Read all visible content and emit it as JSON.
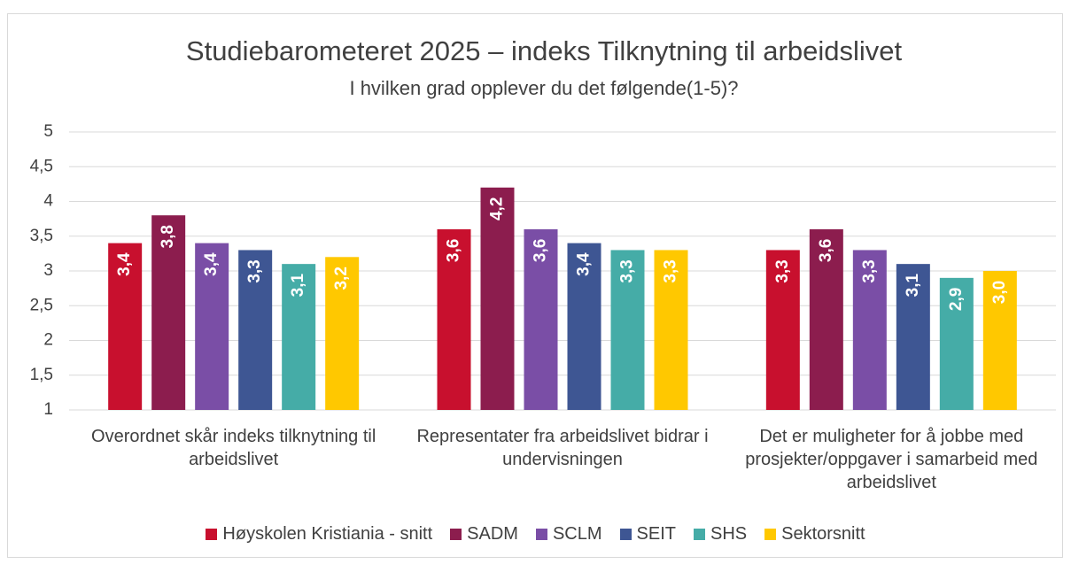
{
  "chart_data": {
    "type": "bar",
    "title": "Studiebarometeret 2025 – indeks Tilknytning til arbeidslivet",
    "subtitle": "I hvilken grad opplever du det følgende(1-5)?",
    "categories": [
      "Overordnet skår indeks tilknytning til arbeidslivet",
      "Representater fra arbeidslivet bidrar i undervisningen",
      "Det er muligheter for å jobbe med prosjekter/oppgaver i samarbeid med arbeidslivet"
    ],
    "series": [
      {
        "name": "Høyskolen Kristiania - snitt",
        "color": "#c8102e",
        "values": [
          3.4,
          3.6,
          3.3
        ],
        "value_labels": [
          "3,4",
          "3,6",
          "3,3"
        ]
      },
      {
        "name": "SADM",
        "color": "#8c1d4e",
        "values": [
          3.8,
          4.2,
          3.6
        ],
        "value_labels": [
          "3,8",
          "4,2",
          "3,6"
        ]
      },
      {
        "name": "SCLM",
        "color": "#7a4ea6",
        "values": [
          3.4,
          3.6,
          3.3
        ],
        "value_labels": [
          "3,4",
          "3,6",
          "3,3"
        ]
      },
      {
        "name": "SEIT",
        "color": "#3e5693",
        "values": [
          3.3,
          3.4,
          3.1
        ],
        "value_labels": [
          "3,3",
          "3,4",
          "3,1"
        ]
      },
      {
        "name": "SHS",
        "color": "#45aca7",
        "values": [
          3.1,
          3.3,
          2.9
        ],
        "value_labels": [
          "3,1",
          "3,3",
          "2,9"
        ]
      },
      {
        "name": "Sektorsnitt",
        "color": "#ffc800",
        "values": [
          3.2,
          3.3,
          3.0
        ],
        "value_labels": [
          "3,2",
          "3,3",
          "3,0"
        ]
      }
    ],
    "ylim": [
      1,
      5
    ],
    "yticks": [
      1,
      {
        "value": 1.5,
        "label": "1,5"
      },
      2,
      {
        "value": 2.5,
        "label": "2,5"
      },
      3,
      {
        "value": 3.5,
        "label": "3,5"
      },
      4,
      {
        "value": 4.5,
        "label": "4,5"
      },
      5
    ],
    "grid": true,
    "legend": "bottom"
  }
}
